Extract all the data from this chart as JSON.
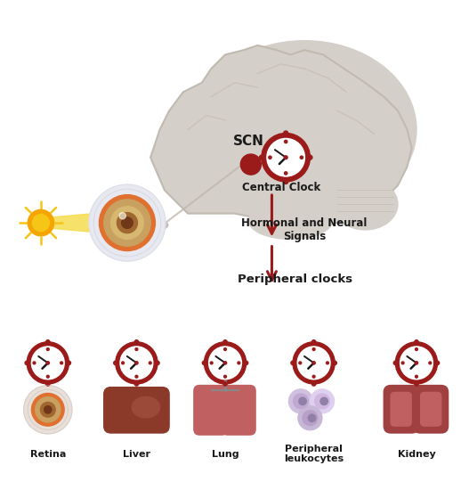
{
  "bg_color": "#ffffff",
  "brain_color": "#d4cfc8",
  "brain_outline": "#c0bab0",
  "clock_ring_color": "#9b1b1b",
  "clock_bg_color": "#ffffff",
  "clock_dot_color": "#9b1b1b",
  "clock_hand_color": "#1a1a1a",
  "arrow_color": "#9b1b1b",
  "scn_dot_color": "#9b1b1b",
  "eye_outer_color": "#e8e0d8",
  "eye_iris_color": "#d4a870",
  "eye_pupil_color": "#8b6020",
  "eye_rim_color": "#e07830",
  "sun_color": "#f5c518",
  "sun_ray_color": "#f5c518",
  "label_color": "#1a1a1a",
  "scn_label": "SCN",
  "central_clock_label": "Central Clock",
  "hormonal_label": "Hormonal and Neural\nSignals",
  "peripheral_label": "Peripheral clocks",
  "organ_labels": [
    "Retina",
    "Liver",
    "Lung",
    "Peripheral\nleukocytes",
    "Kidney"
  ],
  "liver_color": "#8b3a2a",
  "lung_color": "#c06060",
  "kidney_color": "#a04040",
  "leukocyte_colors": [
    "#d8c8e0",
    "#e8d8f0",
    "#c8b8d8"
  ],
  "figsize": [
    5.27,
    5.5
  ],
  "dpi": 100
}
